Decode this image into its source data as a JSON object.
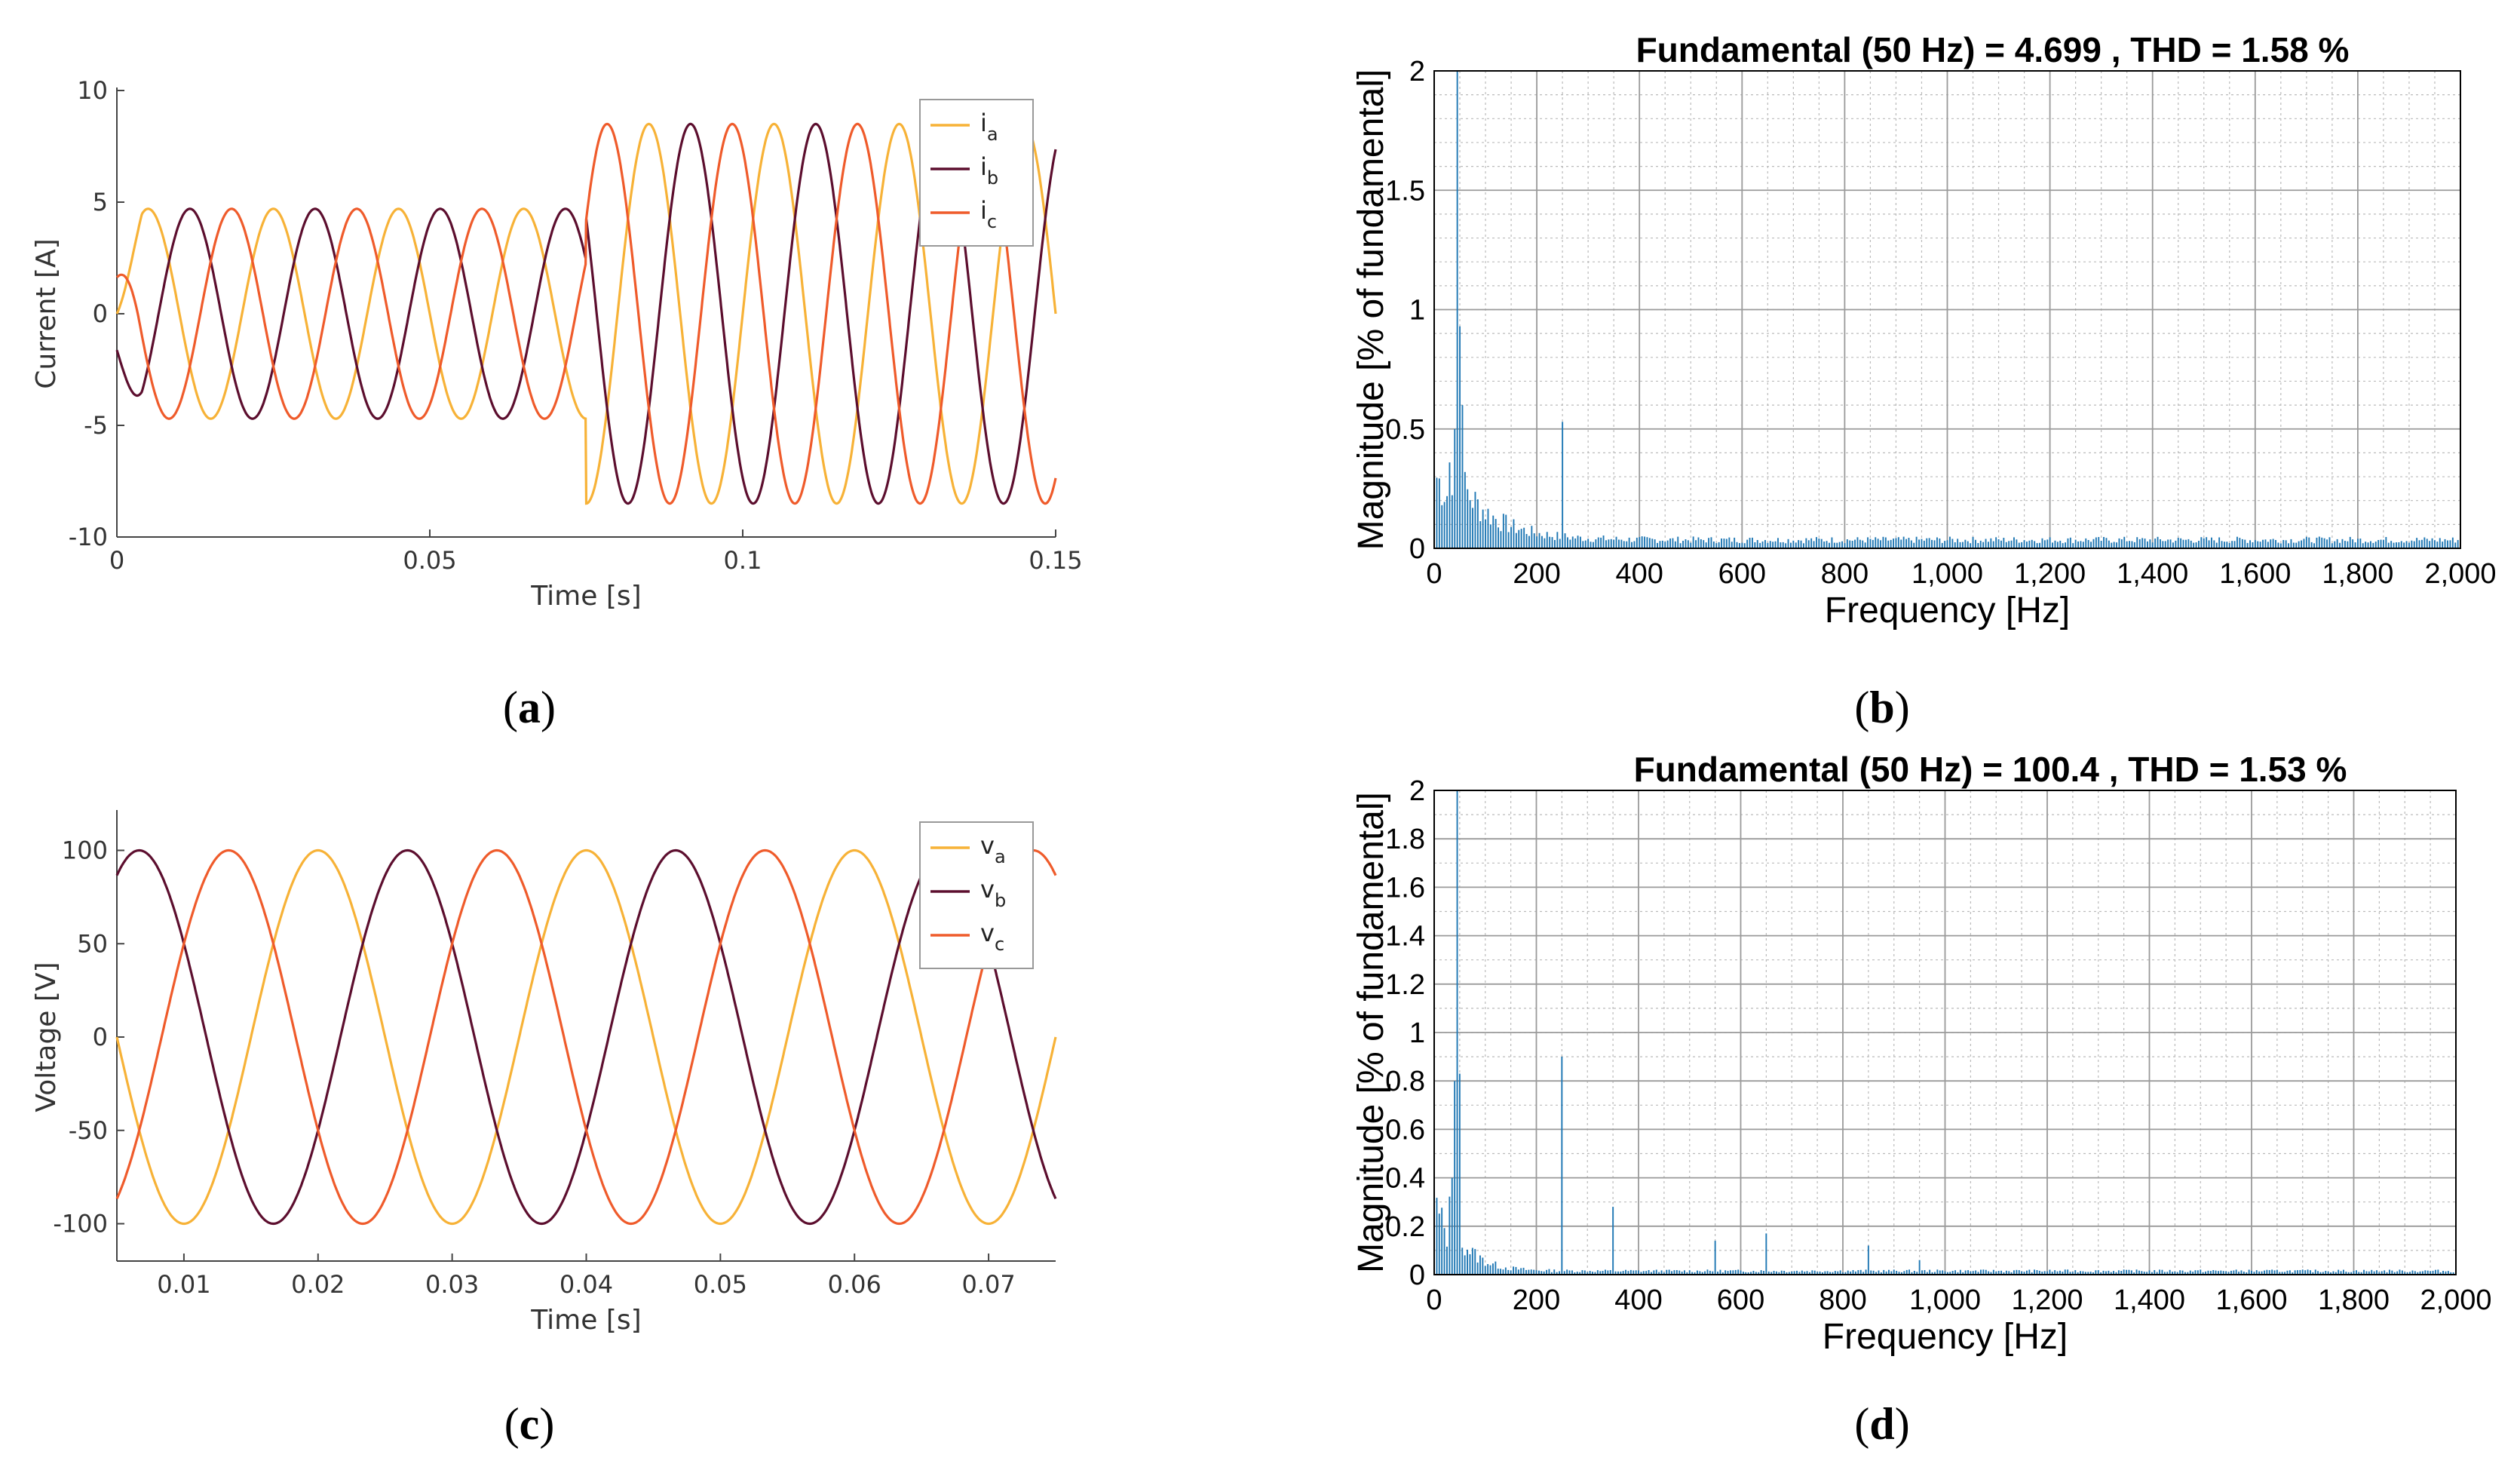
{
  "captions": {
    "a": "a",
    "b": "b",
    "c": "c",
    "d": "d"
  },
  "colors": {
    "a": "#F7B237",
    "b": "#5C0E2E",
    "c": "#EF5B2B",
    "bar": "#1f77b4"
  },
  "chart_data": [
    {
      "id": "a",
      "type": "line",
      "xlabel": "Time [s]",
      "ylabel": "Current [A]",
      "xlim": [
        0,
        0.15
      ],
      "ylim": [
        -10,
        10
      ],
      "xticks": [
        "0",
        "0.05",
        "0.1",
        "0.15"
      ],
      "xtick_values": [
        0,
        0.05,
        0.1,
        0.15
      ],
      "yticks": [
        "10",
        "5",
        "0",
        "-5",
        "-10"
      ],
      "ytick_values": [
        10,
        5,
        0,
        -5,
        -10
      ],
      "frequency_hz": 50,
      "step_time_s": 0.075,
      "legend": [
        "a",
        "b",
        "c"
      ],
      "legend_symbol": "i",
      "series": [
        {
          "name": "i_a",
          "amplitude_before": 4.7,
          "amplitude_after": 8.5,
          "phase_deg": 0
        },
        {
          "name": "i_b",
          "amplitude_before": 4.7,
          "amplitude_after": 8.5,
          "phase_deg": -120
        },
        {
          "name": "i_c",
          "amplitude_before": 4.7,
          "amplitude_after": 8.5,
          "phase_deg": 120
        }
      ]
    },
    {
      "id": "b",
      "type": "bar",
      "title": "Fundamental (50 Hz) = 4.699 , THD = 1.58 %",
      "xlabel": "Frequency [Hz]",
      "ylabel": "Magnitude [% of fundamental]",
      "xlim": [
        0,
        2000
      ],
      "ylim": [
        0,
        2
      ],
      "xticks": [
        "0",
        "200",
        "400",
        "600",
        "800",
        "1,000",
        "1,200",
        "1,400",
        "1,600",
        "1,800",
        "2,000"
      ],
      "xtick_values": [
        0,
        200,
        400,
        600,
        800,
        1000,
        1200,
        1400,
        1600,
        1800,
        2000
      ],
      "yticks": [
        "0",
        "0.5",
        "1",
        "1.5",
        "2"
      ],
      "ytick_values": [
        0,
        0.5,
        1,
        1.5,
        2
      ],
      "bar_spacing_hz": 5,
      "peaks": [
        {
          "hz": 45,
          "value": 2.0
        },
        {
          "hz": 50,
          "value": 0.93
        },
        {
          "hz": 40,
          "value": 0.5
        },
        {
          "hz": 55,
          "value": 0.6
        },
        {
          "hz": 250,
          "value": 0.53
        }
      ],
      "floor": {
        "base": 0.28,
        "decay_hz": 70,
        "tail": 0.035
      }
    },
    {
      "id": "c",
      "type": "line",
      "xlabel": "Time [s]",
      "ylabel": "Voltage [V]",
      "xlim": [
        0.005,
        0.075
      ],
      "ylim": [
        -120,
        120
      ],
      "xticks": [
        "0.01",
        "0.02",
        "0.03",
        "0.04",
        "0.05",
        "0.06",
        "0.07"
      ],
      "xtick_values": [
        0.01,
        0.02,
        0.03,
        0.04,
        0.05,
        0.06,
        0.07
      ],
      "yticks": [
        "100",
        "50",
        "0",
        "-50",
        "-100"
      ],
      "ytick_values": [
        100,
        50,
        0,
        -50,
        -100
      ],
      "frequency_hz": 50,
      "legend": [
        "a",
        "b",
        "c"
      ],
      "legend_symbol": "v",
      "series": [
        {
          "name": "v_a",
          "amplitude": 100,
          "phase_deg": 90
        },
        {
          "name": "v_b",
          "amplitude": 100,
          "phase_deg": -30
        },
        {
          "name": "v_c",
          "amplitude": 100,
          "phase_deg": 210
        }
      ]
    },
    {
      "id": "d",
      "type": "bar",
      "title": "Fundamental (50 Hz) = 100.4 , THD = 1.53 %",
      "xlabel": "Frequency [Hz]",
      "ylabel": "Magnitude [% of fundamental]",
      "xlim": [
        0,
        2000
      ],
      "ylim": [
        0,
        2
      ],
      "xticks": [
        "0",
        "200",
        "400",
        "600",
        "800",
        "1,000",
        "1,200",
        "1,400",
        "1,600",
        "1,800",
        "2,000"
      ],
      "xtick_values": [
        0,
        200,
        400,
        600,
        800,
        1000,
        1200,
        1400,
        1600,
        1800,
        2000
      ],
      "yticks": [
        "0",
        "0.2",
        "0.4",
        "0.6",
        "0.8",
        "1",
        "1.2",
        "1.4",
        "1.6",
        "1.8",
        "2"
      ],
      "ytick_values": [
        0,
        0.2,
        0.4,
        0.6,
        0.8,
        1,
        1.2,
        1.4,
        1.6,
        1.8,
        2
      ],
      "bar_spacing_hz": 5,
      "peaks": [
        {
          "hz": 45,
          "value": 2.0
        },
        {
          "hz": 50,
          "value": 0.83
        },
        {
          "hz": 40,
          "value": 0.8
        },
        {
          "hz": 35,
          "value": 0.4
        },
        {
          "hz": 250,
          "value": 0.9
        },
        {
          "hz": 350,
          "value": 0.28
        },
        {
          "hz": 550,
          "value": 0.14
        },
        {
          "hz": 650,
          "value": 0.17
        },
        {
          "hz": 850,
          "value": 0.12
        },
        {
          "hz": 950,
          "value": 0.06
        }
      ],
      "floor": {
        "base": 0.18,
        "decay_hz": 40,
        "tail": 0.015
      }
    }
  ]
}
